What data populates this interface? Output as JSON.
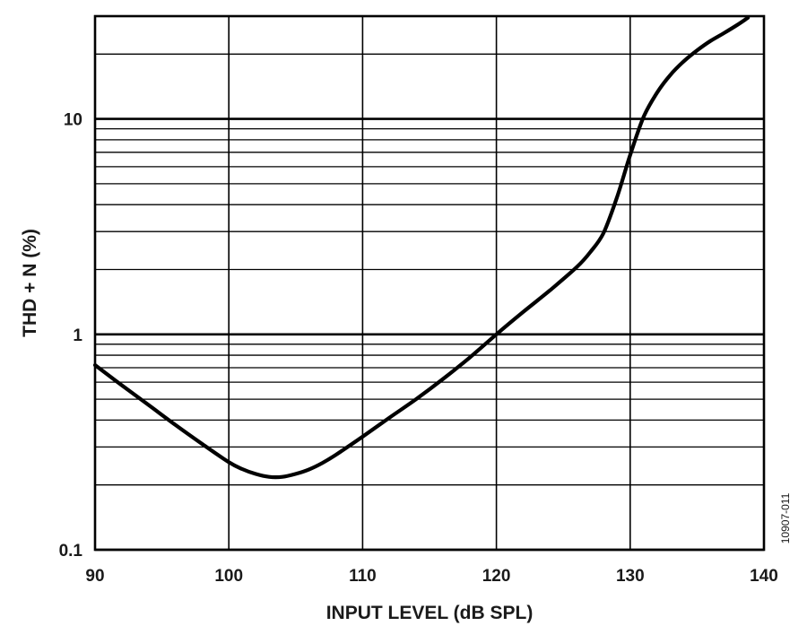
{
  "chart_data": {
    "type": "line",
    "xlabel": "INPUT LEVEL (dB SPL)",
    "ylabel": "THD + N (%)",
    "xlim": [
      90,
      140
    ],
    "ylim": [
      0.1,
      30
    ],
    "yscale": "log",
    "grid": true,
    "x_ticks": [
      90,
      100,
      110,
      120,
      130,
      140
    ],
    "x_tick_labels": [
      "90",
      "100",
      "110",
      "120",
      "130",
      "140"
    ],
    "y_ticks": [
      0.1,
      1,
      10
    ],
    "y_tick_labels": [
      "0.1",
      "1",
      "10"
    ],
    "figure_id": "10907-011",
    "line_color": "#000000",
    "series": [
      {
        "x": [
          90,
          92,
          94,
          96,
          98,
          100,
          101,
          102,
          103,
          104,
          105,
          106,
          107,
          108,
          110,
          112,
          114,
          116,
          118,
          120,
          122,
          124,
          126,
          127,
          128,
          129,
          130,
          131,
          132,
          133,
          134,
          135,
          136,
          137,
          138,
          138.8
        ],
        "y": [
          0.72,
          0.58,
          0.47,
          0.38,
          0.31,
          0.255,
          0.237,
          0.225,
          0.218,
          0.218,
          0.225,
          0.236,
          0.253,
          0.276,
          0.335,
          0.41,
          0.5,
          0.62,
          0.78,
          1.0,
          1.27,
          1.6,
          2.05,
          2.4,
          2.95,
          4.3,
          6.8,
          10.2,
          13.2,
          16.0,
          18.5,
          20.8,
          23.0,
          25.0,
          27.3,
          29.5
        ]
      }
    ]
  }
}
